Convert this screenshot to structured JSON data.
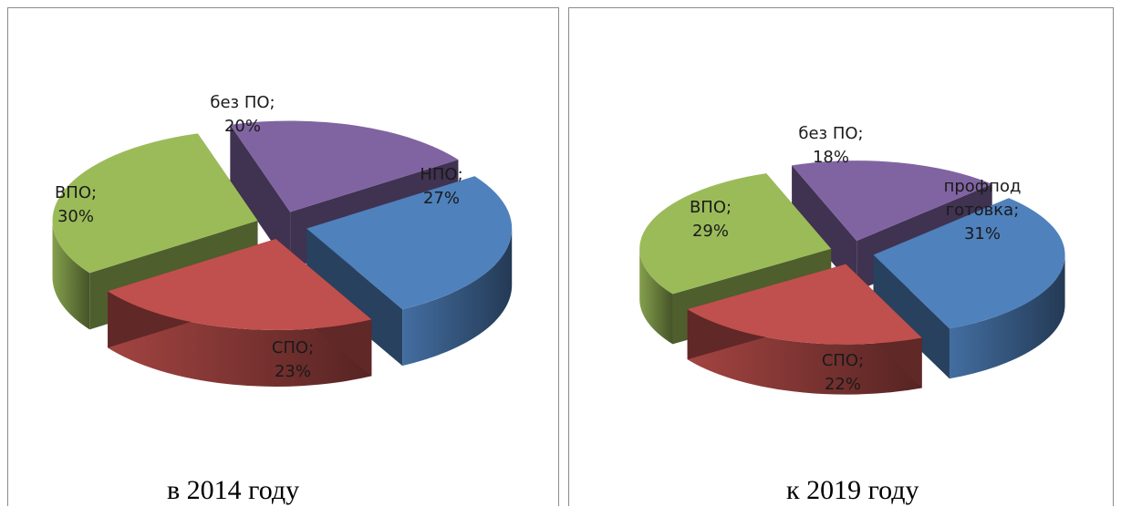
{
  "chart_data": [
    {
      "type": "pie",
      "caption": "в 2014 году",
      "slices": [
        {
          "name": "НПО",
          "value": 27,
          "label_lines": [
            "НПО;",
            "27%"
          ],
          "color": "#4f81bd"
        },
        {
          "name": "СПО",
          "value": 23,
          "label_lines": [
            "СПО;",
            "23%"
          ],
          "color": "#c0504d"
        },
        {
          "name": "ВПО",
          "value": 30,
          "label_lines": [
            "ВПО;",
            "30%"
          ],
          "color": "#9bbb59"
        },
        {
          "name": "без ПО",
          "value": 20,
          "label_lines": [
            "без ПО;",
            "20%"
          ],
          "color": "#8064a2"
        }
      ]
    },
    {
      "type": "pie",
      "caption": "к 2019 году",
      "slices": [
        {
          "name": "профподготовка",
          "value": 31,
          "label_lines": [
            "профпод",
            "готовка;",
            "31%"
          ],
          "color": "#4f81bd"
        },
        {
          "name": "СПО",
          "value": 22,
          "label_lines": [
            "СПО;",
            "22%"
          ],
          "color": "#c0504d"
        },
        {
          "name": "ВПО",
          "value": 29,
          "label_lines": [
            "ВПО;",
            "29%"
          ],
          "color": "#9bbb59"
        },
        {
          "name": "без ПО",
          "value": 18,
          "label_lines": [
            "без ПО;",
            "18%"
          ],
          "color": "#8064a2"
        }
      ]
    }
  ]
}
